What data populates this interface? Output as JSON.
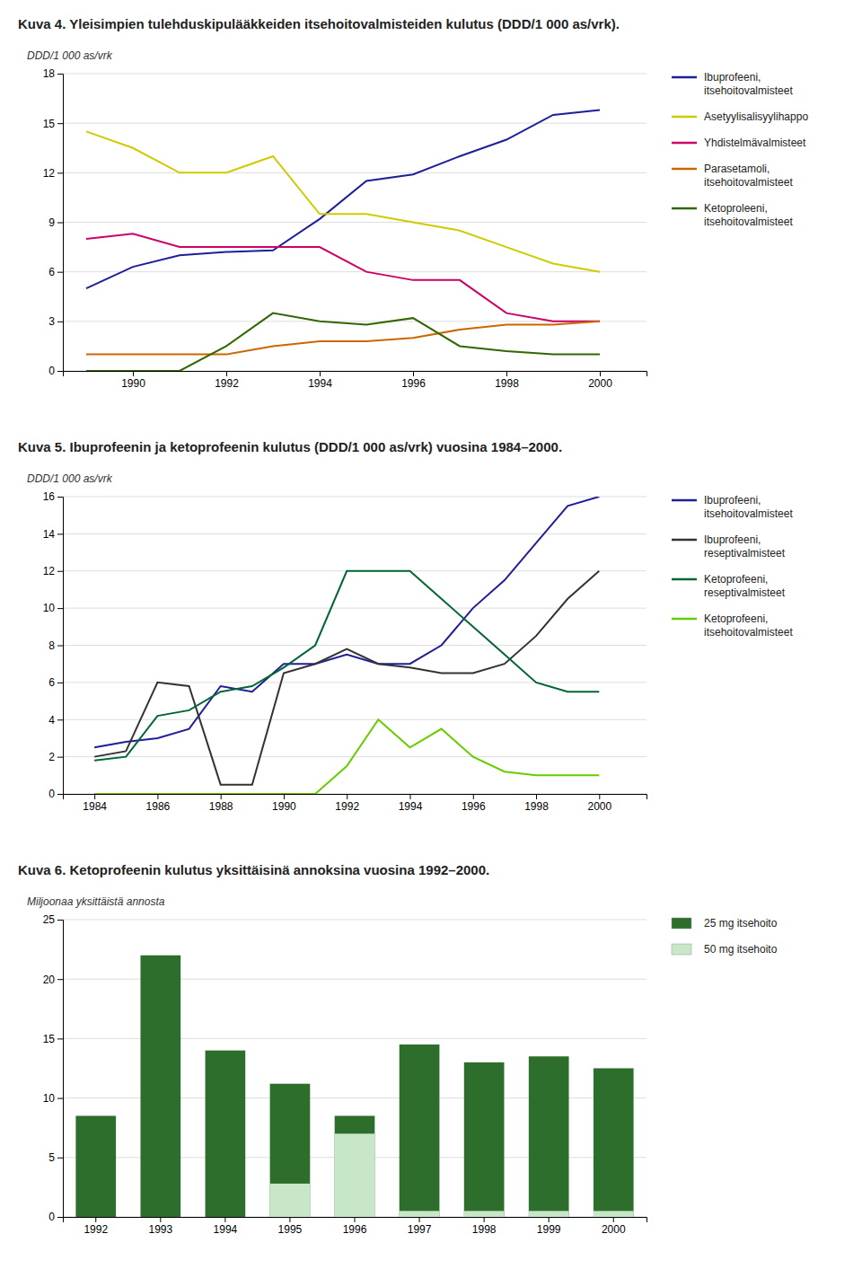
{
  "chart_data": [
    {
      "type": "line",
      "title": "Kuva 4. Yleisimpien tulehduskipulääkkeiden itsehoitovalmisteiden kulutus (DDD/1 000 as/vrk).",
      "ylabel": "DDD/1 000 as/vrk",
      "x": [
        1989,
        1990,
        1991,
        1992,
        1993,
        1994,
        1995,
        1996,
        1997,
        1998,
        1999,
        2000
      ],
      "xlim": [
        1988.5,
        2001.0
      ],
      "xticks": [
        1990,
        1992,
        1994,
        1996,
        1998,
        2000
      ],
      "ylim": [
        0,
        18
      ],
      "yticks": [
        0,
        3,
        6,
        9,
        12,
        15,
        18
      ],
      "grid": true,
      "legend": "right",
      "series": [
        {
          "name": "Ibuprofeeni,\nitsehoitovalmisteet",
          "color": "#1e1e99",
          "values": [
            5.0,
            6.3,
            7.0,
            7.2,
            7.3,
            9.2,
            11.5,
            11.9,
            13.0,
            14.0,
            15.5,
            15.8
          ]
        },
        {
          "name": "Asetyylisalisyylihappo",
          "color": "#cccc00",
          "values": [
            14.5,
            13.5,
            12.0,
            12.0,
            13.0,
            9.5,
            9.5,
            9.0,
            8.5,
            7.5,
            6.5,
            6.0
          ]
        },
        {
          "name": "Yhdistelmävalmisteet",
          "color": "#cc0066",
          "values": [
            8.0,
            8.3,
            7.5,
            7.5,
            7.5,
            7.5,
            6.0,
            5.5,
            5.5,
            3.5,
            3.0,
            3.0
          ]
        },
        {
          "name": "Parasetamoli,\nitsehoitovalmisteet",
          "color": "#cc6600",
          "values": [
            1.0,
            1.0,
            1.0,
            1.0,
            1.5,
            1.8,
            1.8,
            2.0,
            2.5,
            2.8,
            2.8,
            3.0
          ]
        },
        {
          "name": "Ketoproleeni,\nitsehoitovalmisteet",
          "color": "#336600",
          "values": [
            0.0,
            0.0,
            0.0,
            1.5,
            3.5,
            3.0,
            2.8,
            3.2,
            1.5,
            1.2,
            1.0,
            1.0
          ]
        }
      ]
    },
    {
      "type": "line",
      "title": "Kuva 5.  Ibuprofeenin ja ketoprofeenin kulutus (DDD/1 000 as/vrk) vuosina 1984–2000.",
      "ylabel": "DDD/1 000 as/vrk",
      "x": [
        1984,
        1985,
        1986,
        1987,
        1988,
        1989,
        1990,
        1991,
        1992,
        1993,
        1994,
        1995,
        1996,
        1997,
        1998,
        1999,
        2000
      ],
      "xlim": [
        1983.0,
        2001.5
      ],
      "xticks": [
        1984,
        1986,
        1988,
        1990,
        1992,
        1994,
        1996,
        1998,
        2000
      ],
      "ylim": [
        0,
        16
      ],
      "yticks": [
        0,
        2,
        4,
        6,
        8,
        10,
        12,
        14,
        16
      ],
      "grid": true,
      "legend": "right",
      "series": [
        {
          "name": "Ibuprofeeni,\nitsehoitovalmisteet",
          "color": "#1e1e99",
          "values": [
            2.5,
            2.8,
            3.0,
            3.5,
            5.8,
            5.5,
            7.0,
            7.0,
            7.5,
            7.0,
            7.0,
            8.0,
            10.0,
            11.5,
            13.5,
            15.5,
            16.0
          ]
        },
        {
          "name": "Ibuprofeeni,\nreseptivalmisteet",
          "color": "#333333",
          "values": [
            2.0,
            2.3,
            6.0,
            5.8,
            0.5,
            0.5,
            6.5,
            7.0,
            7.8,
            7.0,
            6.8,
            6.5,
            6.5,
            7.0,
            8.5,
            10.5,
            12.0
          ]
        },
        {
          "name": "Ketoprofeeni,\nreseptivalmisteet",
          "color": "#006633",
          "values": [
            1.8,
            2.0,
            4.2,
            4.5,
            5.5,
            5.8,
            6.8,
            8.0,
            12.0,
            12.0,
            12.0,
            10.5,
            9.0,
            7.5,
            6.0,
            5.5,
            5.5
          ]
        },
        {
          "name": "Ketoprofeeni,\nitsehoitovalmisteet",
          "color": "#66cc00",
          "values": [
            0.0,
            0.0,
            0.0,
            0.0,
            0.0,
            0.0,
            0.0,
            0.0,
            1.5,
            4.0,
            2.5,
            3.5,
            2.0,
            1.2,
            1.0,
            1.0,
            1.0
          ]
        }
      ]
    },
    {
      "type": "bar",
      "title": "Kuva 6. Ketoprofeenin kulutus yksittäisinä annoksina vuosina 1992–2000.",
      "ylabel": "Miljoonaa yksittäistä annosta",
      "categories": [
        "1992",
        "1993",
        "1994",
        "1995",
        "1996",
        "1997",
        "1998",
        "1999",
        "2000"
      ],
      "ylim": [
        0,
        25
      ],
      "yticks": [
        0,
        5,
        10,
        15,
        20,
        25
      ],
      "grid": true,
      "legend": "right",
      "stacked": false,
      "series": [
        {
          "name": "25 mg itsehoito",
          "color": "#2d6e2d",
          "values": [
            8.5,
            22.0,
            14.0,
            11.2,
            8.5,
            14.5,
            13.0,
            13.5,
            12.5
          ]
        },
        {
          "name": "50 mg itsehoito",
          "color": "#c8e6c8",
          "values": [
            0.0,
            0.0,
            0.0,
            2.8,
            7.0,
            0.5,
            0.5,
            0.5,
            0.5
          ]
        }
      ]
    }
  ]
}
